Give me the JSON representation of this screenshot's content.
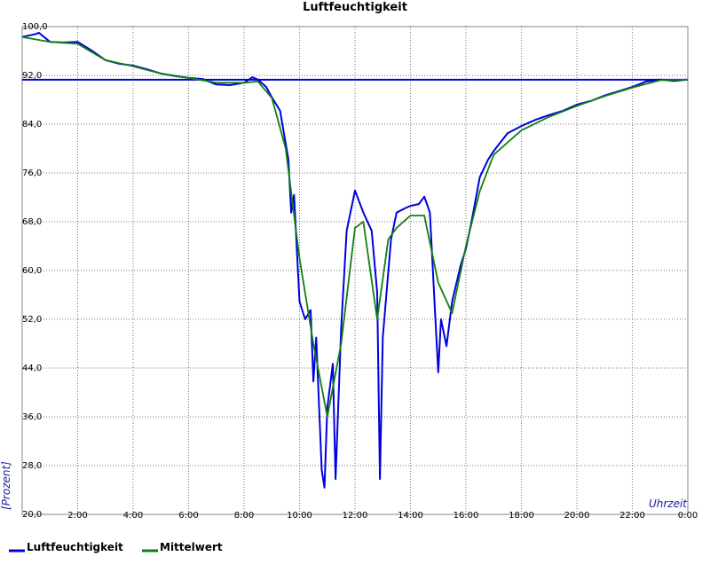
{
  "chart_data": {
    "type": "line",
    "title": "Luftfeuchtigkeit",
    "ylabel": "[Prozent]",
    "xlabel": "Uhrzeit",
    "xlim": [
      0,
      24
    ],
    "ylim": [
      20,
      100
    ],
    "xticks": [
      {
        "value": 2,
        "label": "2:00"
      },
      {
        "value": 4,
        "label": "4:00"
      },
      {
        "value": 6,
        "label": "6:00"
      },
      {
        "value": 8,
        "label": "8:00"
      },
      {
        "value": 10,
        "label": "10:00"
      },
      {
        "value": 12,
        "label": "12:00"
      },
      {
        "value": 14,
        "label": "14:00"
      },
      {
        "value": 16,
        "label": "16:00"
      },
      {
        "value": 18,
        "label": "18:00"
      },
      {
        "value": 20,
        "label": "20:00"
      },
      {
        "value": 22,
        "label": "22:00"
      },
      {
        "value": 24,
        "label": "0:00"
      }
    ],
    "yticks": [
      {
        "value": 20,
        "label": "20,0"
      },
      {
        "value": 28,
        "label": "28,0"
      },
      {
        "value": 36,
        "label": "36,0"
      },
      {
        "value": 44,
        "label": "44,0"
      },
      {
        "value": 52,
        "label": "52,0"
      },
      {
        "value": 60,
        "label": "60,0"
      },
      {
        "value": 68,
        "label": "68,0"
      },
      {
        "value": 76,
        "label": "76,0"
      },
      {
        "value": 84,
        "label": "84,0"
      },
      {
        "value": 92,
        "label": "92,0"
      },
      {
        "value": 100,
        "label": "100,0"
      }
    ],
    "grid": true,
    "reference_line": {
      "value": 91.3,
      "color": "#0000cc"
    },
    "series": [
      {
        "name": "Luftfeuchtigkeit",
        "color": "#0000dd",
        "x": [
          0,
          0.5,
          0.6,
          1,
          1.5,
          2,
          2.5,
          3,
          3.5,
          4,
          4.5,
          5,
          5.5,
          6,
          6.5,
          7,
          7.5,
          8,
          8.3,
          8.5,
          8.8,
          9,
          9.3,
          9.6,
          9.7,
          9.8,
          10,
          10.2,
          10.4,
          10.5,
          10.6,
          10.8,
          10.9,
          11,
          11.2,
          11.3,
          11.5,
          11.7,
          12,
          12.3,
          12.6,
          12.8,
          12.9,
          13,
          13.3,
          13.5,
          13.8,
          14,
          14.3,
          14.5,
          14.7,
          14.9,
          15,
          15.1,
          15.3,
          15.5,
          15.8,
          16,
          16.2,
          16.5,
          16.8,
          17,
          17.5,
          18,
          18.5,
          19,
          19.5,
          20,
          20.5,
          21,
          21.5,
          22,
          22.5,
          23,
          23.5,
          24
        ],
        "values": [
          98.3,
          98.8,
          99,
          97.5,
          97.4,
          97.5,
          96.1,
          94.5,
          93.9,
          93.6,
          93,
          92.3,
          91.9,
          91.6,
          91.4,
          90.5,
          90.4,
          90.8,
          91.7,
          91.3,
          90.1,
          88.4,
          86.2,
          78.2,
          69.5,
          72.4,
          54.9,
          52,
          53.5,
          41.8,
          49,
          27.3,
          24.4,
          37.5,
          44.7,
          25.8,
          50.5,
          66.5,
          73.1,
          69.5,
          66.5,
          56.4,
          25.8,
          49,
          65.1,
          69.5,
          70.2,
          70.6,
          70.9,
          72.1,
          69.5,
          52,
          43.3,
          52,
          47.6,
          54.9,
          60.7,
          63.6,
          68,
          75.3,
          78.2,
          79.6,
          82.5,
          83.7,
          84.7,
          85.5,
          86.2,
          87.2,
          87.8,
          88.7,
          89.4,
          90.1,
          91,
          91.3,
          91.1,
          91.3
        ]
      },
      {
        "name": "Mittelwert",
        "color": "#108010",
        "x": [
          0,
          1,
          2,
          3,
          4,
          5,
          6,
          7,
          8,
          8.5,
          9,
          9.5,
          10,
          10.5,
          11,
          11.5,
          12,
          12.3,
          12.8,
          13.2,
          13.5,
          14,
          14.5,
          15,
          15.5,
          16,
          16.5,
          17,
          18,
          19,
          20,
          21,
          22,
          23,
          24
        ],
        "values": [
          98.3,
          97.5,
          97.2,
          94.5,
          93.5,
          92.3,
          91.6,
          90.8,
          90.8,
          91,
          88.3,
          80,
          62,
          48,
          36,
          48,
          67,
          68,
          52,
          65.1,
          67,
          69,
          69,
          58,
          53,
          64,
          73,
          79,
          83,
          85.2,
          87,
          88.6,
          90,
          91.2,
          91.3
        ]
      }
    ]
  }
}
